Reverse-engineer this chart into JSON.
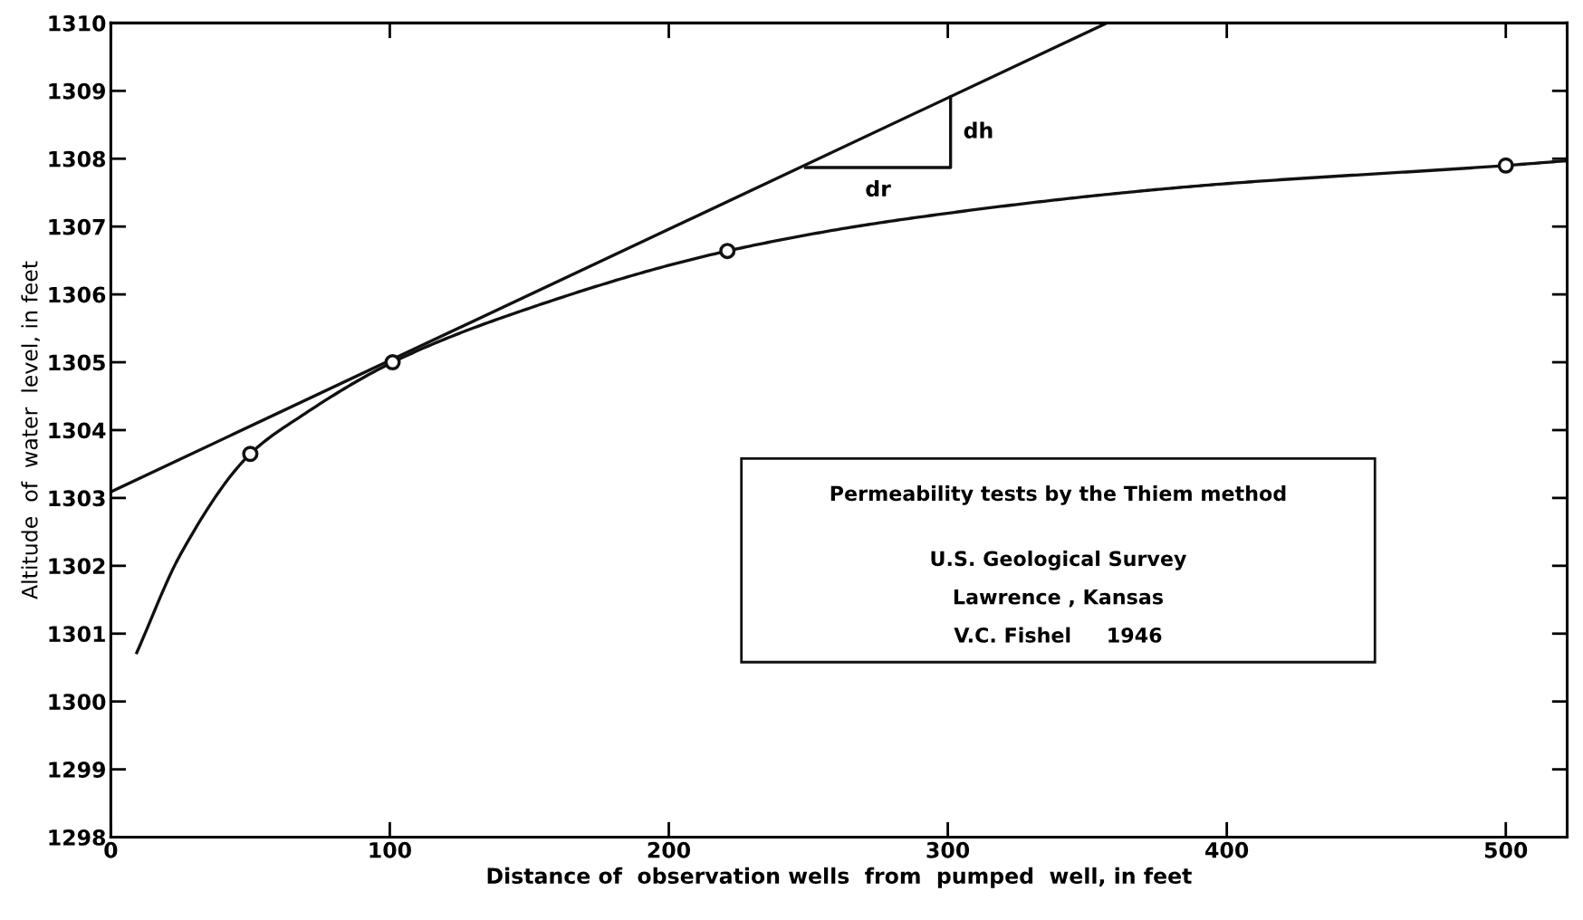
{
  "chart_data": {
    "type": "line",
    "xlabel": "Distance of  observation wells  from  pumped  well, in feet",
    "ylabel": "Altitude  of  water  level, in feet",
    "xlim": [
      0,
      522
    ],
    "xticks": [
      0,
      100,
      200,
      300,
      400,
      500
    ],
    "ylim": [
      1298,
      1310
    ],
    "yticks": [
      1298,
      1299,
      1300,
      1301,
      1302,
      1303,
      1304,
      1305,
      1306,
      1307,
      1308,
      1309,
      1310
    ],
    "grid": false,
    "legend": false,
    "series": [
      {
        "type": "scatter",
        "marker": "circle",
        "color": "#111111",
        "x": [
          50,
          101,
          221,
          500
        ],
        "values": [
          1303.65,
          1305.0,
          1306.64,
          1307.9
        ]
      },
      {
        "marker": "none",
        "line_style": "solid",
        "color": "#111111",
        "x": [
          9.3,
          25,
          50,
          68,
          101,
          139.7,
          221,
          283,
          390,
          500,
          522
        ],
        "values": [
          1300.72,
          1302.17,
          1303.65,
          1304.2,
          1305.0,
          1305.65,
          1306.64,
          1307.1,
          1307.6,
          1307.9,
          1307.97
        ]
      },
      {
        "marker": "none",
        "line_style": "solid",
        "color": "#111111",
        "x": [
          0,
          357
        ],
        "values": [
          1303.09,
          1310
        ]
      },
      {
        "marker": "none",
        "line_style": "solid",
        "color": "#111111",
        "x": [
          249,
          301,
          301
        ],
        "values": [
          1307.87,
          1307.87,
          1308.91
        ]
      }
    ],
    "annotations": [
      "dh",
      "dr",
      "Permeability tests by the Thiem method",
      "U.S. Geological Survey",
      "Lawrence , Kansas",
      "V.C. Fishel     1946"
    ]
  }
}
